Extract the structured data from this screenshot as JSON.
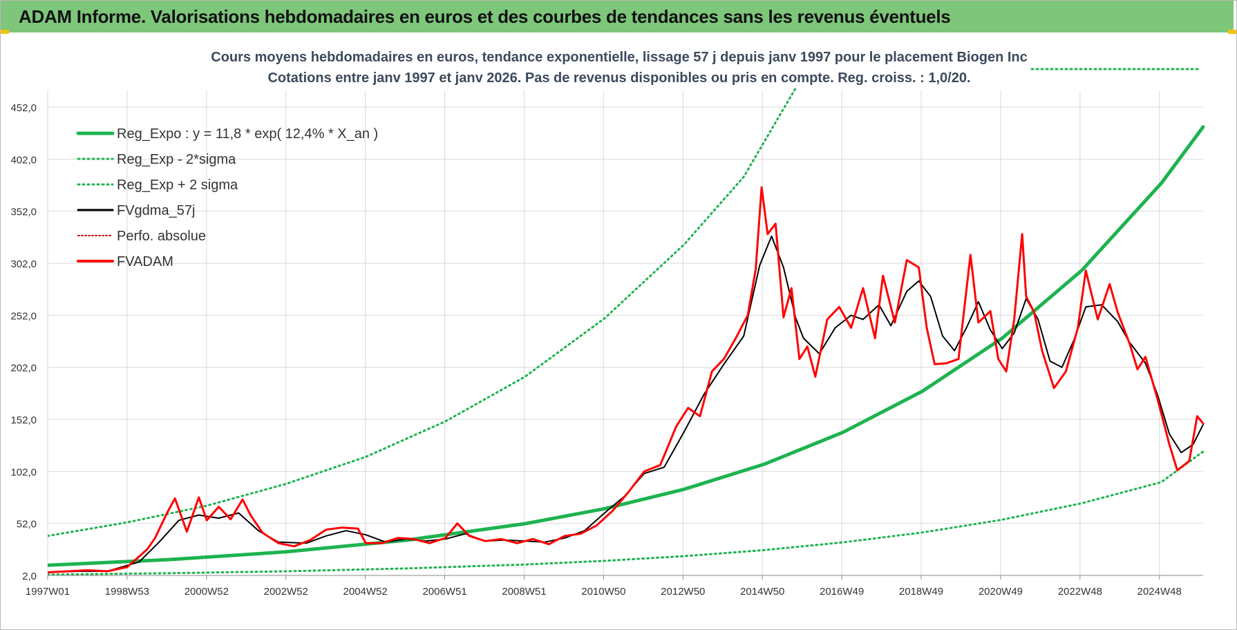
{
  "banner": {
    "title": "ADAM Informe. Valorisations hebdomadaires en euros et des courbes de tendances sans les revenus éventuels"
  },
  "colors": {
    "banner_bg": "#7dc67a",
    "reg_expo": "#1db34f",
    "sigma": "#1db34f",
    "fvgdma": "#000000",
    "fvadam": "#ff0000",
    "grid": "#d9d9d9"
  },
  "chart_data": {
    "type": "line",
    "title_line1": "Cours moyens hebdomadaires en euros, tendance exponentielle, lissage 57 j depuis janv 1997  pour le placement Biogen Inc",
    "title_line2": "Cotations entre janv 1997 et janv 2026. Pas de revenus disponibles ou pris en compte. Reg. croiss. : 1,0/20.",
    "y_ticks": [
      "2,0",
      "52,0",
      "102,0",
      "152,0",
      "202,0",
      "252,0",
      "302,0",
      "352,0",
      "402,0",
      "452,0"
    ],
    "x_ticks": [
      "1997W01",
      "1998W53",
      "2000W52",
      "2002W52",
      "2004W52",
      "2006W51",
      "2008W51",
      "2010W50",
      "2012W50",
      "2014W50",
      "2016W49",
      "2018W49",
      "2020W49",
      "2022W48",
      "2024W48"
    ],
    "x_range_years": [
      1997.0,
      2026.05
    ],
    "ylim": [
      2,
      468
    ],
    "grid": true,
    "legend_position": "top-left",
    "legend": [
      {
        "name": "Reg_Expo : y = 11,8 * exp( 12,4% *  X_an )",
        "style": "solid-thick",
        "color": "#1db34f"
      },
      {
        "name": "Reg_Exp - 2*sigma",
        "style": "dotted",
        "color": "#1db34f"
      },
      {
        "name": "Reg_Exp + 2 sigma",
        "style": "dotted",
        "color": "#1db34f"
      },
      {
        "name": "FVgdma_57j",
        "style": "solid",
        "color": "#000000"
      },
      {
        "name": "Perfo. absolue",
        "style": "dotted",
        "color": "#c00000"
      },
      {
        "name": "FVADAM",
        "style": "solid-thick",
        "color": "#ff0000"
      }
    ],
    "series": [
      {
        "name": "Reg_Expo : y = 11,8 * exp( 12,4% *  X_an )",
        "points": [
          [
            1997.0,
            11.8
          ],
          [
            2000.0,
            17.1
          ],
          [
            2003.0,
            24.7
          ],
          [
            2006.0,
            35.8
          ],
          [
            2009.0,
            51.7
          ],
          [
            2011.0,
            66.1
          ],
          [
            2013.0,
            84.8
          ],
          [
            2015.0,
            108.7
          ],
          [
            2017.0,
            139.6
          ],
          [
            2019.0,
            179.2
          ],
          [
            2021.0,
            230.0
          ],
          [
            2023.0,
            295.2
          ],
          [
            2025.0,
            379.0
          ],
          [
            2026.05,
            433.0
          ]
        ]
      },
      {
        "name": "Reg_Exp - 2*sigma",
        "points": [
          [
            1997.0,
            2.8
          ],
          [
            2000.0,
            4.1
          ],
          [
            2003.0,
            6.0
          ],
          [
            2006.0,
            8.7
          ],
          [
            2009.0,
            12.5
          ],
          [
            2011.0,
            16.0
          ],
          [
            2013.0,
            20.5
          ],
          [
            2015.0,
            26.3
          ],
          [
            2017.0,
            33.8
          ],
          [
            2019.0,
            43.3
          ],
          [
            2021.0,
            55.6
          ],
          [
            2023.0,
            71.4
          ],
          [
            2025.0,
            91.7
          ],
          [
            2026.05,
            121.0
          ]
        ]
      },
      {
        "name": "Reg_Exp + 2 sigma",
        "points": [
          [
            1997.0,
            40.0
          ],
          [
            1999.0,
            53.0
          ],
          [
            2001.0,
            69.0
          ],
          [
            2003.0,
            90.0
          ],
          [
            2005.0,
            116.0
          ],
          [
            2007.0,
            150.0
          ],
          [
            2009.0,
            193.0
          ],
          [
            2011.0,
            249.0
          ],
          [
            2013.0,
            320.0
          ],
          [
            2014.5,
            385.0
          ],
          [
            2015.8,
            470.0
          ]
        ]
      },
      {
        "name": "FVgdma_57j",
        "points": [
          [
            1997.0,
            5
          ],
          [
            1997.8,
            6
          ],
          [
            1998.5,
            6
          ],
          [
            1999.3,
            15
          ],
          [
            1999.8,
            34
          ],
          [
            2000.3,
            55
          ],
          [
            2000.8,
            60
          ],
          [
            2001.3,
            57
          ],
          [
            2001.8,
            62
          ],
          [
            2002.3,
            45
          ],
          [
            2002.8,
            34
          ],
          [
            2003.5,
            33
          ],
          [
            2004.0,
            40
          ],
          [
            2004.5,
            45
          ],
          [
            2005.0,
            41
          ],
          [
            2005.5,
            34
          ],
          [
            2006.0,
            37
          ],
          [
            2006.5,
            35
          ],
          [
            2007.0,
            37
          ],
          [
            2007.5,
            42
          ],
          [
            2008.0,
            35
          ],
          [
            2008.5,
            36
          ],
          [
            2009.0,
            35
          ],
          [
            2009.5,
            34
          ],
          [
            2010.0,
            38
          ],
          [
            2010.5,
            45
          ],
          [
            2011.0,
            62
          ],
          [
            2011.5,
            78
          ],
          [
            2012.0,
            100
          ],
          [
            2012.5,
            106
          ],
          [
            2013.0,
            140
          ],
          [
            2013.5,
            176
          ],
          [
            2014.0,
            205
          ],
          [
            2014.5,
            232
          ],
          [
            2014.9,
            300
          ],
          [
            2015.2,
            328
          ],
          [
            2015.5,
            298
          ],
          [
            2015.8,
            250
          ],
          [
            2016.0,
            230
          ],
          [
            2016.4,
            215
          ],
          [
            2016.8,
            240
          ],
          [
            2017.2,
            252
          ],
          [
            2017.5,
            248
          ],
          [
            2017.9,
            262
          ],
          [
            2018.2,
            242
          ],
          [
            2018.6,
            275
          ],
          [
            2018.9,
            285
          ],
          [
            2019.2,
            270
          ],
          [
            2019.5,
            232
          ],
          [
            2019.8,
            218
          ],
          [
            2020.1,
            240
          ],
          [
            2020.4,
            265
          ],
          [
            2020.7,
            238
          ],
          [
            2021.0,
            220
          ],
          [
            2021.3,
            235
          ],
          [
            2021.6,
            268
          ],
          [
            2021.9,
            248
          ],
          [
            2022.2,
            208
          ],
          [
            2022.5,
            202
          ],
          [
            2022.8,
            228
          ],
          [
            2023.1,
            260
          ],
          [
            2023.5,
            262
          ],
          [
            2023.9,
            246
          ],
          [
            2024.2,
            226
          ],
          [
            2024.6,
            206
          ],
          [
            2024.9,
            176
          ],
          [
            2025.2,
            138
          ],
          [
            2025.5,
            120
          ],
          [
            2025.8,
            128
          ],
          [
            2026.05,
            147
          ]
        ]
      },
      {
        "name": "FVADAM",
        "points": [
          [
            1997.0,
            5
          ],
          [
            1997.5,
            6
          ],
          [
            1998.0,
            7
          ],
          [
            1998.5,
            6
          ],
          [
            1999.0,
            10
          ],
          [
            1999.5,
            27
          ],
          [
            1999.7,
            38
          ],
          [
            2000.0,
            62
          ],
          [
            2000.2,
            76
          ],
          [
            2000.5,
            44
          ],
          [
            2000.8,
            77
          ],
          [
            2001.0,
            55
          ],
          [
            2001.3,
            68
          ],
          [
            2001.6,
            56
          ],
          [
            2001.9,
            75
          ],
          [
            2002.1,
            60
          ],
          [
            2002.4,
            43
          ],
          [
            2002.8,
            33
          ],
          [
            2003.2,
            30
          ],
          [
            2003.6,
            36
          ],
          [
            2004.0,
            46
          ],
          [
            2004.4,
            48
          ],
          [
            2004.8,
            47
          ],
          [
            2005.0,
            33
          ],
          [
            2005.4,
            33
          ],
          [
            2005.8,
            38
          ],
          [
            2006.2,
            37
          ],
          [
            2006.6,
            33
          ],
          [
            2007.0,
            38
          ],
          [
            2007.3,
            52
          ],
          [
            2007.6,
            40
          ],
          [
            2008.0,
            35
          ],
          [
            2008.4,
            37
          ],
          [
            2008.8,
            33
          ],
          [
            2009.2,
            37
          ],
          [
            2009.6,
            32
          ],
          [
            2010.0,
            40
          ],
          [
            2010.4,
            42
          ],
          [
            2010.8,
            50
          ],
          [
            2011.2,
            64
          ],
          [
            2011.6,
            82
          ],
          [
            2012.0,
            102
          ],
          [
            2012.4,
            108
          ],
          [
            2012.8,
            145
          ],
          [
            2013.1,
            163
          ],
          [
            2013.4,
            155
          ],
          [
            2013.7,
            198
          ],
          [
            2014.0,
            210
          ],
          [
            2014.3,
            230
          ],
          [
            2014.6,
            252
          ],
          [
            2014.8,
            296
          ],
          [
            2014.95,
            375
          ],
          [
            2015.1,
            330
          ],
          [
            2015.3,
            340
          ],
          [
            2015.5,
            250
          ],
          [
            2015.7,
            278
          ],
          [
            2015.9,
            210
          ],
          [
            2016.1,
            222
          ],
          [
            2016.3,
            193
          ],
          [
            2016.6,
            248
          ],
          [
            2016.9,
            260
          ],
          [
            2017.2,
            240
          ],
          [
            2017.5,
            278
          ],
          [
            2017.8,
            230
          ],
          [
            2018.0,
            290
          ],
          [
            2018.3,
            245
          ],
          [
            2018.6,
            305
          ],
          [
            2018.9,
            298
          ],
          [
            2019.1,
            240
          ],
          [
            2019.3,
            205
          ],
          [
            2019.6,
            206
          ],
          [
            2019.9,
            210
          ],
          [
            2020.2,
            310
          ],
          [
            2020.4,
            245
          ],
          [
            2020.7,
            256
          ],
          [
            2020.9,
            210
          ],
          [
            2021.1,
            198
          ],
          [
            2021.3,
            248
          ],
          [
            2021.5,
            330
          ],
          [
            2021.6,
            270
          ],
          [
            2021.8,
            255
          ],
          [
            2022.0,
            218
          ],
          [
            2022.3,
            182
          ],
          [
            2022.6,
            198
          ],
          [
            2022.9,
            240
          ],
          [
            2023.1,
            295
          ],
          [
            2023.4,
            248
          ],
          [
            2023.7,
            282
          ],
          [
            2023.9,
            255
          ],
          [
            2024.2,
            225
          ],
          [
            2024.4,
            200
          ],
          [
            2024.6,
            212
          ],
          [
            2024.9,
            172
          ],
          [
            2025.2,
            128
          ],
          [
            2025.4,
            103
          ],
          [
            2025.7,
            112
          ],
          [
            2025.9,
            155
          ],
          [
            2026.05,
            148
          ]
        ]
      }
    ]
  }
}
